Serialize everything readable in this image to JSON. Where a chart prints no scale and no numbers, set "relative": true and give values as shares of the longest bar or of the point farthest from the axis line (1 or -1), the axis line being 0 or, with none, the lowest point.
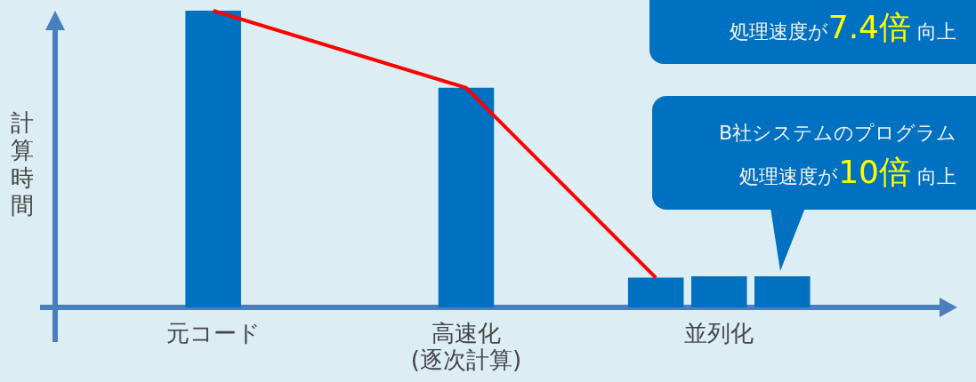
{
  "chart_data": {
    "type": "bar",
    "relative": true,
    "ylabel": "計算時間",
    "marker": "none",
    "grid": false,
    "categories": [
      null,
      null,
      "元コード",
      null,
      null,
      null,
      "高速化\n(逐次計算)",
      null,
      null,
      null,
      "並列化",
      null,
      null,
      null
    ],
    "series": [
      {
        "color": "#0070c0",
        "values": [
          null,
          null,
          1,
          null,
          null,
          null,
          0.74,
          null,
          null,
          0.1,
          0.105,
          0.105,
          null,
          null
        ]
      },
      {
        "type": "line",
        "color": "#ff0000",
        "values": [
          null,
          null,
          1,
          null,
          null,
          null,
          0.74,
          null,
          null,
          0.1,
          null,
          null,
          null,
          null
        ]
      }
    ],
    "annotations": [
      "処理速度が7.4倍 向上",
      "B社システムのプログラム",
      "処理速度が10倍 向上"
    ]
  }
}
